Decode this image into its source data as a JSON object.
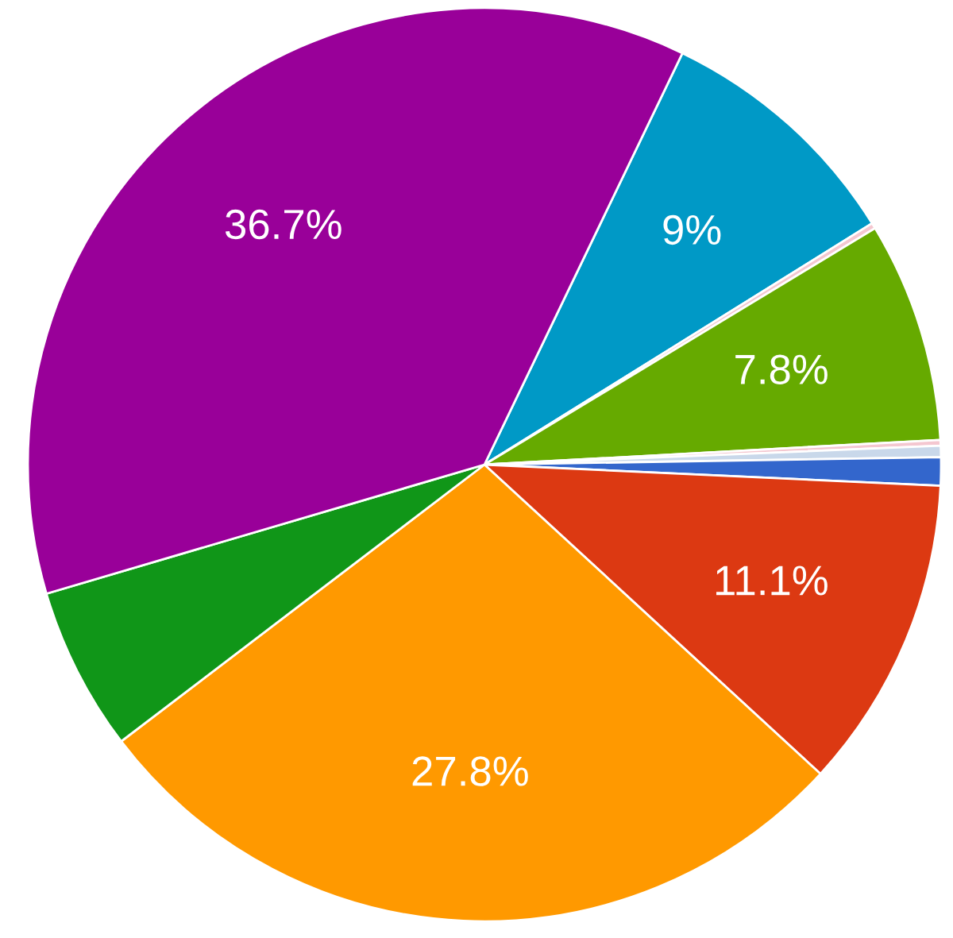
{
  "chart_data": {
    "type": "pie",
    "categories": [
      null,
      null,
      null,
      null,
      null,
      null,
      null,
      null,
      null,
      null
    ],
    "values": [
      9,
      0.2,
      7.8,
      0.2,
      0.4,
      1.0,
      11.1,
      27.8,
      5.8,
      36.7
    ],
    "colors": [
      "#0099c6",
      "#f4c7d0",
      "#66aa00",
      "#f4c7d0",
      "#c9d8ea",
      "#3366cc",
      "#dc3912",
      "#ff9900",
      "#109618",
      "#990099"
    ],
    "value_labels": [
      "9%",
      null,
      "7.8%",
      null,
      null,
      null,
      "11.1%",
      "27.8%",
      null,
      "36.7%"
    ],
    "legend": false
  }
}
